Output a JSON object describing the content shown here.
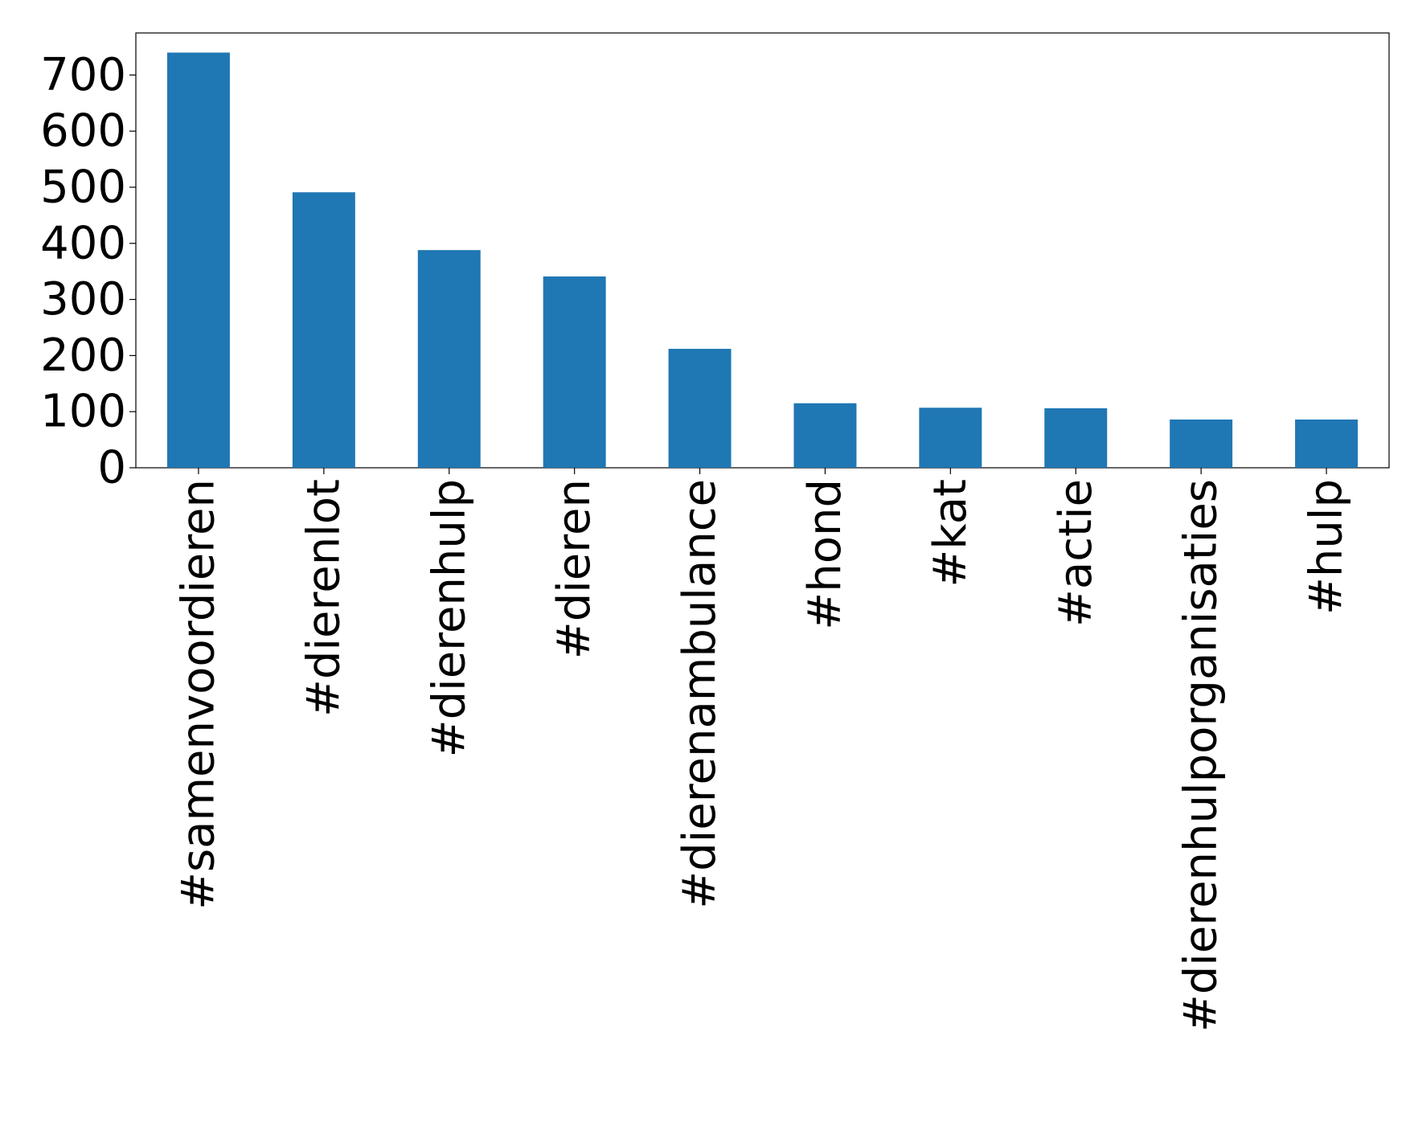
{
  "chart_data": {
    "type": "bar",
    "categories": [
      "#samenvoordieren",
      "#dierenlot",
      "#dierenhulp",
      "#dieren",
      "#dierenambulance",
      "#hond",
      "#kat",
      "#actie",
      "#dierenhulporganisaties",
      "#hulp"
    ],
    "values": [
      740,
      491,
      388,
      341,
      212,
      115,
      107,
      106,
      86,
      86
    ],
    "color": "#1f77b4",
    "ylim": [
      0,
      775
    ],
    "yticks": [
      0,
      100,
      200,
      300,
      400,
      500,
      600,
      700
    ],
    "grid": false
  }
}
